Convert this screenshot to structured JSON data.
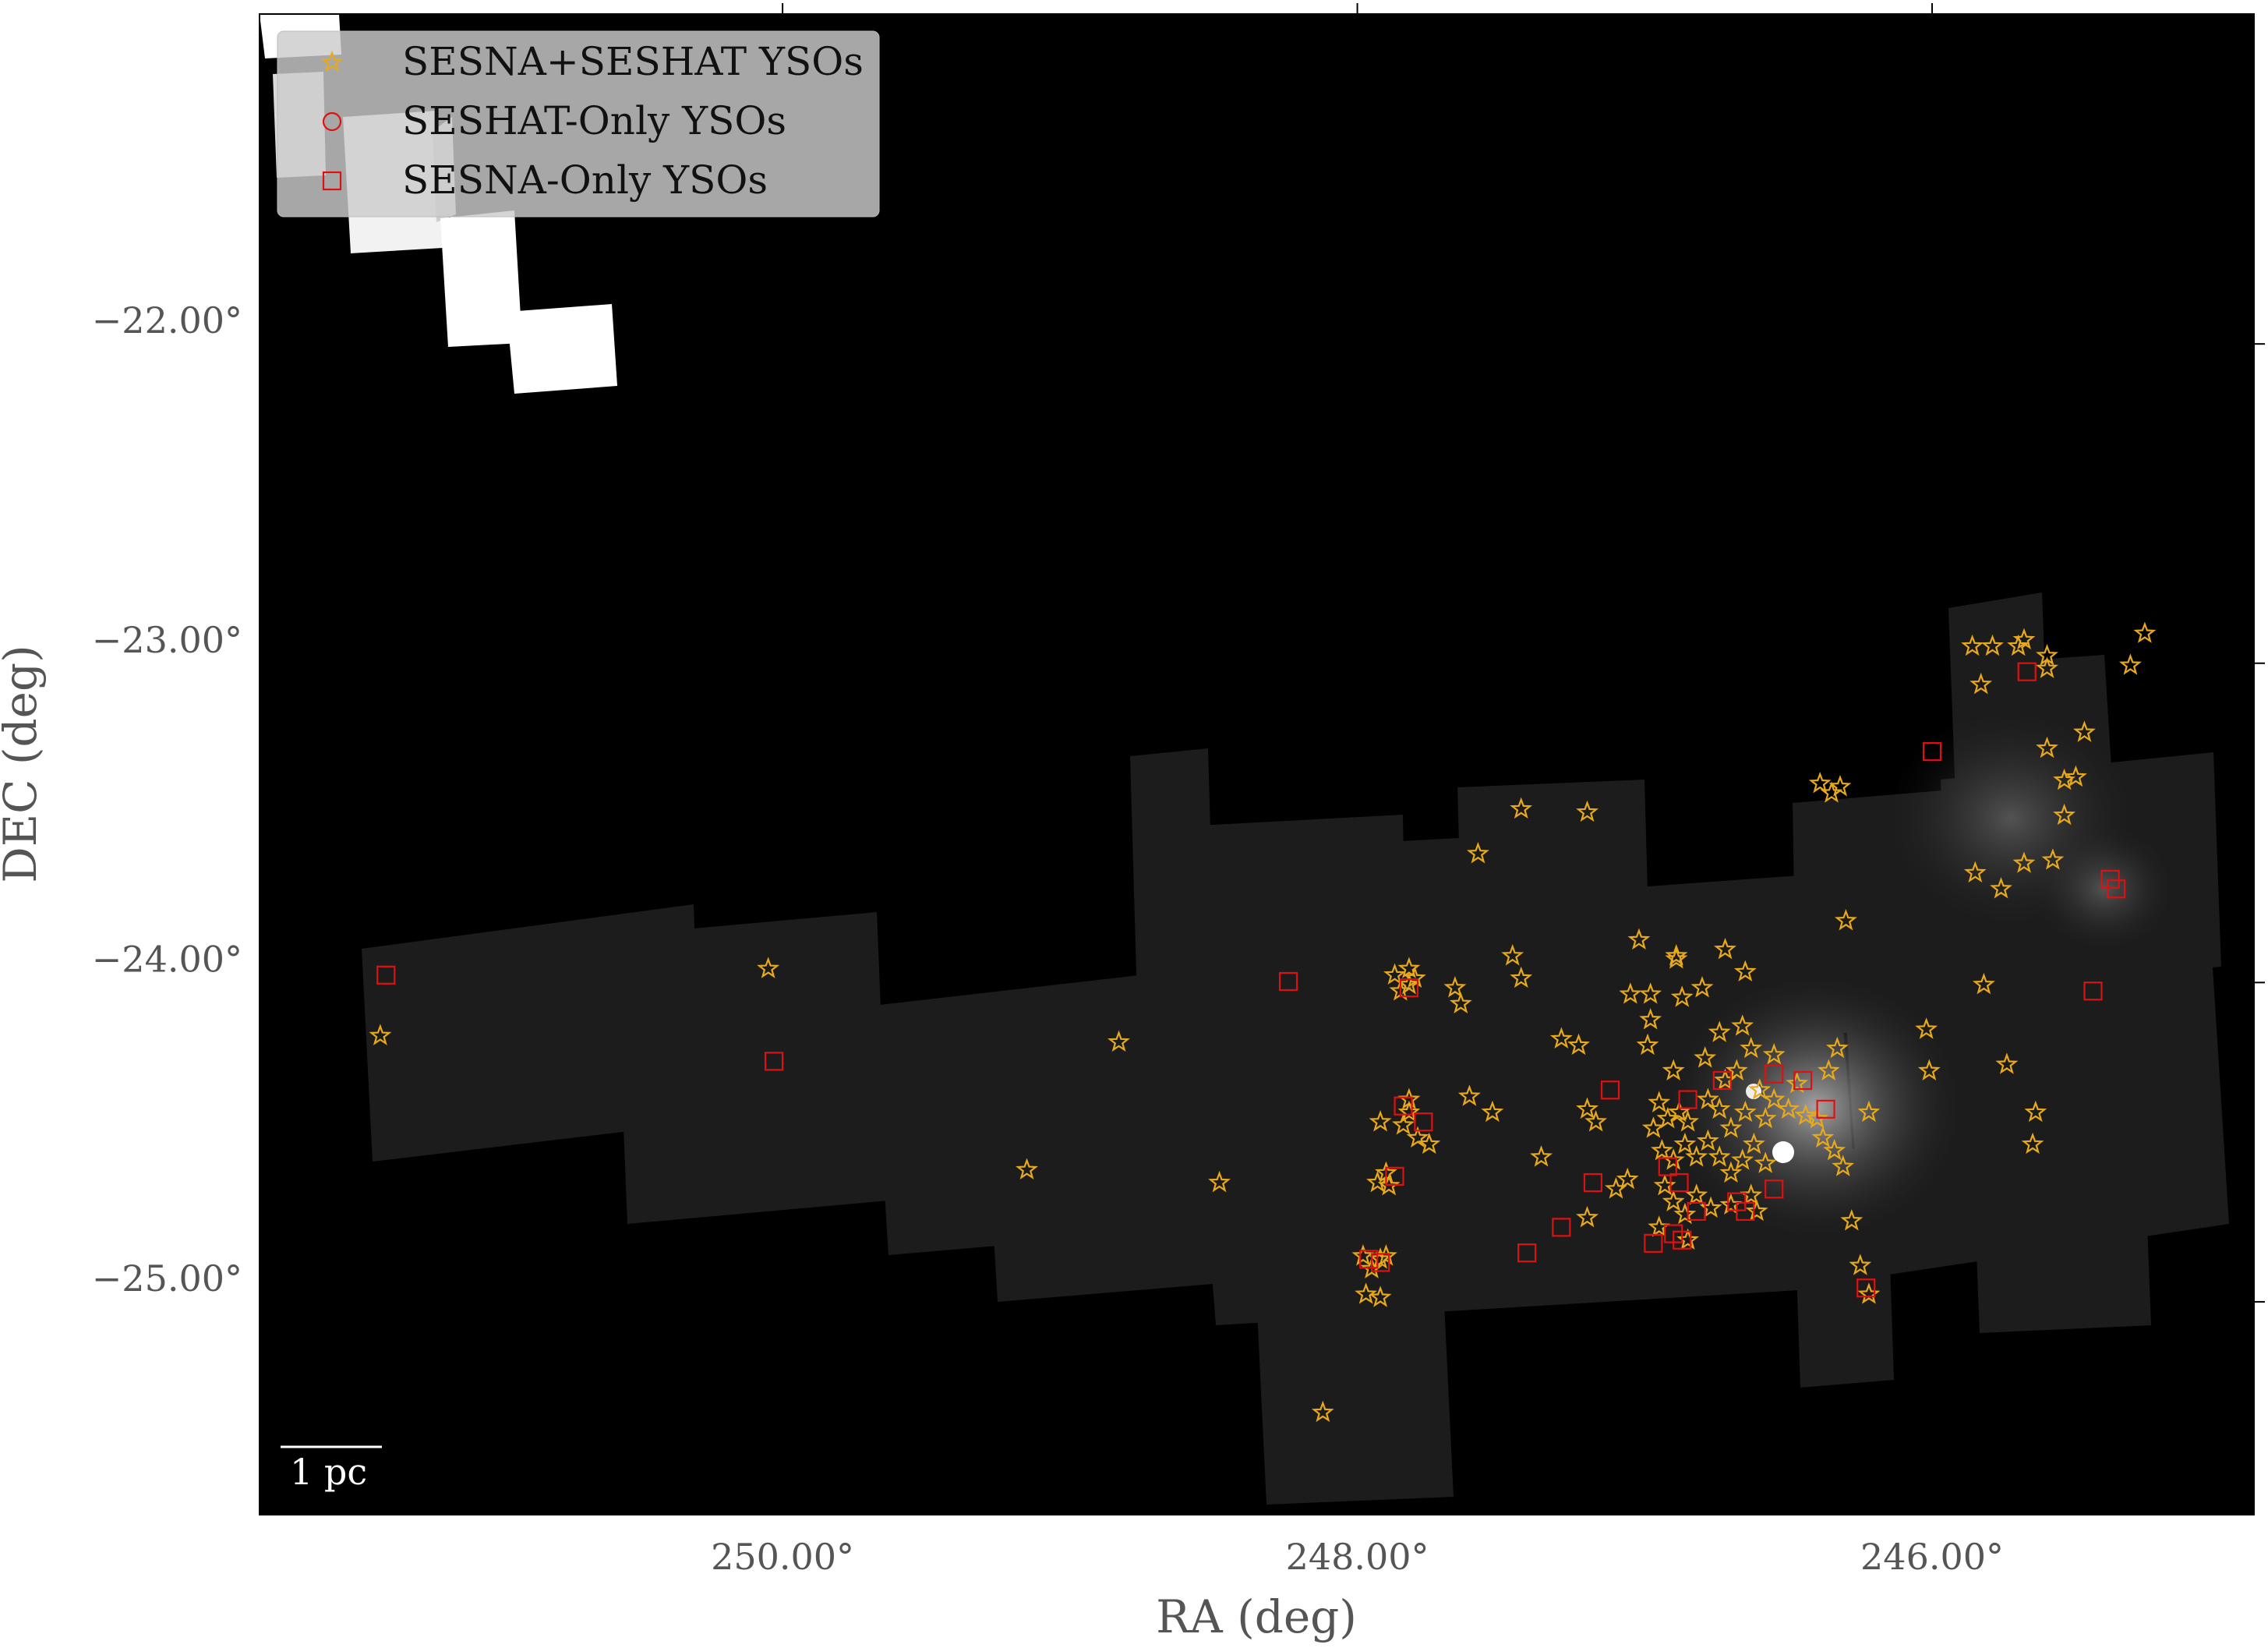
{
  "chart_data": {
    "type": "scatter",
    "title": "",
    "xlabel": "RA (deg)",
    "ylabel": "DEC (deg)",
    "x_direction": "decreasing to the right",
    "xlim": [
      251.82,
      244.88
    ],
    "ylim": [
      -25.74,
      -21.04
    ],
    "x_ticks": [
      {
        "value": 250.0,
        "label": "250.00°"
      },
      {
        "value": 248.0,
        "label": "248.00°"
      },
      {
        "value": 246.0,
        "label": "246.00°"
      }
    ],
    "y_ticks": [
      {
        "value": -22.0,
        "label": "−22.00°"
      },
      {
        "value": -23.0,
        "label": "−23.00°"
      },
      {
        "value": -24.0,
        "label": "−24.00°"
      },
      {
        "value": -25.0,
        "label": "−25.00°"
      }
    ],
    "background": "#000000",
    "grid": false,
    "legend_position": "top-left",
    "scale_bar": {
      "label": "1 pc"
    },
    "series": [
      {
        "name": "SESNA+SESHAT YSOs",
        "marker": "star",
        "color": "#e8a91c",
        "points": [
          [
            251.4,
            -24.24
          ],
          [
            250.05,
            -24.03
          ],
          [
            249.15,
            -24.66
          ],
          [
            248.83,
            -24.26
          ],
          [
            248.48,
            -24.7
          ],
          [
            247.87,
            -24.05
          ],
          [
            247.85,
            -24.1
          ],
          [
            247.82,
            -24.03
          ],
          [
            247.8,
            -24.06
          ],
          [
            247.82,
            -24.08
          ],
          [
            247.92,
            -24.51
          ],
          [
            247.93,
            -24.7
          ],
          [
            247.9,
            -24.67
          ],
          [
            247.89,
            -24.71
          ],
          [
            247.82,
            -24.44
          ],
          [
            247.82,
            -24.48
          ],
          [
            247.84,
            -24.52
          ],
          [
            247.79,
            -24.56
          ],
          [
            247.75,
            -24.58
          ],
          [
            247.92,
            -24.94
          ],
          [
            247.95,
            -24.97
          ],
          [
            247.98,
            -24.93
          ],
          [
            247.9,
            -24.93
          ],
          [
            247.97,
            -25.05
          ],
          [
            247.92,
            -25.06
          ],
          [
            248.12,
            -25.42
          ],
          [
            247.66,
            -24.09
          ],
          [
            247.64,
            -24.14
          ],
          [
            247.61,
            -24.43
          ],
          [
            247.53,
            -24.48
          ],
          [
            247.58,
            -23.67
          ],
          [
            247.46,
            -23.99
          ],
          [
            247.43,
            -24.06
          ],
          [
            247.43,
            -23.53
          ],
          [
            247.2,
            -23.54
          ],
          [
            247.29,
            -24.25
          ],
          [
            247.23,
            -24.27
          ],
          [
            247.36,
            -24.62
          ],
          [
            247.2,
            -24.47
          ],
          [
            247.17,
            -24.51
          ],
          [
            247.2,
            -24.81
          ],
          [
            247.1,
            -24.72
          ],
          [
            247.06,
            -24.69
          ],
          [
            247.02,
            -23.94
          ],
          [
            246.98,
            -24.11
          ],
          [
            247.05,
            -24.11
          ],
          [
            246.98,
            -24.19
          ],
          [
            246.99,
            -24.27
          ],
          [
            246.89,
            -24.0
          ],
          [
            246.89,
            -23.99
          ],
          [
            246.87,
            -24.12
          ],
          [
            246.8,
            -24.09
          ],
          [
            246.72,
            -23.97
          ],
          [
            246.65,
            -24.04
          ],
          [
            246.9,
            -24.35
          ],
          [
            246.95,
            -24.45
          ],
          [
            246.92,
            -24.5
          ],
          [
            246.88,
            -24.48
          ],
          [
            246.85,
            -24.51
          ],
          [
            246.78,
            -24.44
          ],
          [
            246.74,
            -24.47
          ],
          [
            246.7,
            -24.53
          ],
          [
            246.65,
            -24.48
          ],
          [
            246.6,
            -24.41
          ],
          [
            246.58,
            -24.5
          ],
          [
            246.55,
            -24.44
          ],
          [
            246.5,
            -24.47
          ],
          [
            246.47,
            -24.39
          ],
          [
            246.44,
            -24.49
          ],
          [
            246.97,
            -24.53
          ],
          [
            246.94,
            -24.6
          ],
          [
            246.9,
            -24.63
          ],
          [
            246.86,
            -24.58
          ],
          [
            246.82,
            -24.62
          ],
          [
            246.78,
            -24.57
          ],
          [
            246.74,
            -24.62
          ],
          [
            246.7,
            -24.67
          ],
          [
            246.66,
            -24.63
          ],
          [
            246.62,
            -24.58
          ],
          [
            246.58,
            -24.64
          ],
          [
            246.93,
            -24.71
          ],
          [
            246.9,
            -24.76
          ],
          [
            246.86,
            -24.8
          ],
          [
            246.82,
            -24.74
          ],
          [
            246.77,
            -24.78
          ],
          [
            246.7,
            -24.77
          ],
          [
            246.63,
            -24.74
          ],
          [
            246.61,
            -24.79
          ],
          [
            246.95,
            -24.84
          ],
          [
            246.85,
            -24.88
          ],
          [
            246.72,
            -24.38
          ],
          [
            246.68,
            -24.35
          ],
          [
            246.79,
            -24.31
          ],
          [
            246.74,
            -24.23
          ],
          [
            246.66,
            -24.21
          ],
          [
            246.63,
            -24.28
          ],
          [
            246.55,
            -24.3
          ],
          [
            246.4,
            -24.5
          ],
          [
            246.38,
            -24.56
          ],
          [
            246.34,
            -24.6
          ],
          [
            246.31,
            -24.65
          ],
          [
            246.36,
            -24.35
          ],
          [
            246.33,
            -24.28
          ],
          [
            246.39,
            -23.45
          ],
          [
            246.35,
            -23.48
          ],
          [
            246.32,
            -23.46
          ],
          [
            246.3,
            -23.88
          ],
          [
            246.22,
            -24.48
          ],
          [
            246.28,
            -24.82
          ],
          [
            246.25,
            -24.96
          ],
          [
            246.22,
            -25.05
          ],
          [
            246.02,
            -24.22
          ],
          [
            246.01,
            -24.35
          ],
          [
            245.85,
            -23.73
          ],
          [
            245.82,
            -24.08
          ],
          [
            245.76,
            -23.78
          ],
          [
            245.68,
            -23.7
          ],
          [
            245.64,
            -24.48
          ],
          [
            245.65,
            -24.58
          ],
          [
            245.6,
            -23.34
          ],
          [
            245.54,
            -23.44
          ],
          [
            245.54,
            -23.55
          ],
          [
            245.5,
            -23.43
          ],
          [
            245.58,
            -23.69
          ],
          [
            245.86,
            -23.02
          ],
          [
            245.79,
            -23.02
          ],
          [
            245.83,
            -23.14
          ],
          [
            245.68,
            -23.0
          ],
          [
            245.7,
            -23.02
          ],
          [
            245.6,
            -23.05
          ],
          [
            245.6,
            -23.09
          ],
          [
            245.47,
            -23.29
          ],
          [
            245.26,
            -22.98
          ],
          [
            245.31,
            -23.08
          ],
          [
            245.74,
            -24.33
          ]
        ]
      },
      {
        "name": "SESHAT-Only YSOs",
        "marker": "circle",
        "color": "#dd1111",
        "points": []
      },
      {
        "name": "SESNA-Only YSOs",
        "marker": "square",
        "color": "#dd1111",
        "points": [
          [
            251.38,
            -24.05
          ],
          [
            250.03,
            -24.32
          ],
          [
            248.24,
            -24.07
          ],
          [
            247.82,
            -24.09
          ],
          [
            247.84,
            -24.46
          ],
          [
            247.77,
            -24.51
          ],
          [
            247.87,
            -24.68
          ],
          [
            247.96,
            -24.94
          ],
          [
            247.92,
            -24.95
          ],
          [
            247.41,
            -24.92
          ],
          [
            247.29,
            -24.84
          ],
          [
            247.18,
            -24.7
          ],
          [
            247.12,
            -24.41
          ],
          [
            246.97,
            -24.89
          ],
          [
            246.92,
            -24.65
          ],
          [
            246.9,
            -24.86
          ],
          [
            246.87,
            -24.88
          ],
          [
            246.88,
            -24.7
          ],
          [
            246.85,
            -24.44
          ],
          [
            246.82,
            -24.79
          ],
          [
            246.73,
            -24.38
          ],
          [
            246.68,
            -24.76
          ],
          [
            246.65,
            -24.79
          ],
          [
            246.55,
            -24.36
          ],
          [
            246.55,
            -24.72
          ],
          [
            246.45,
            -24.38
          ],
          [
            246.37,
            -24.47
          ],
          [
            246.23,
            -25.03
          ],
          [
            246.0,
            -23.35
          ],
          [
            245.67,
            -23.1
          ],
          [
            245.44,
            -24.1
          ],
          [
            245.38,
            -23.75
          ],
          [
            245.36,
            -23.78
          ]
        ]
      }
    ]
  }
}
